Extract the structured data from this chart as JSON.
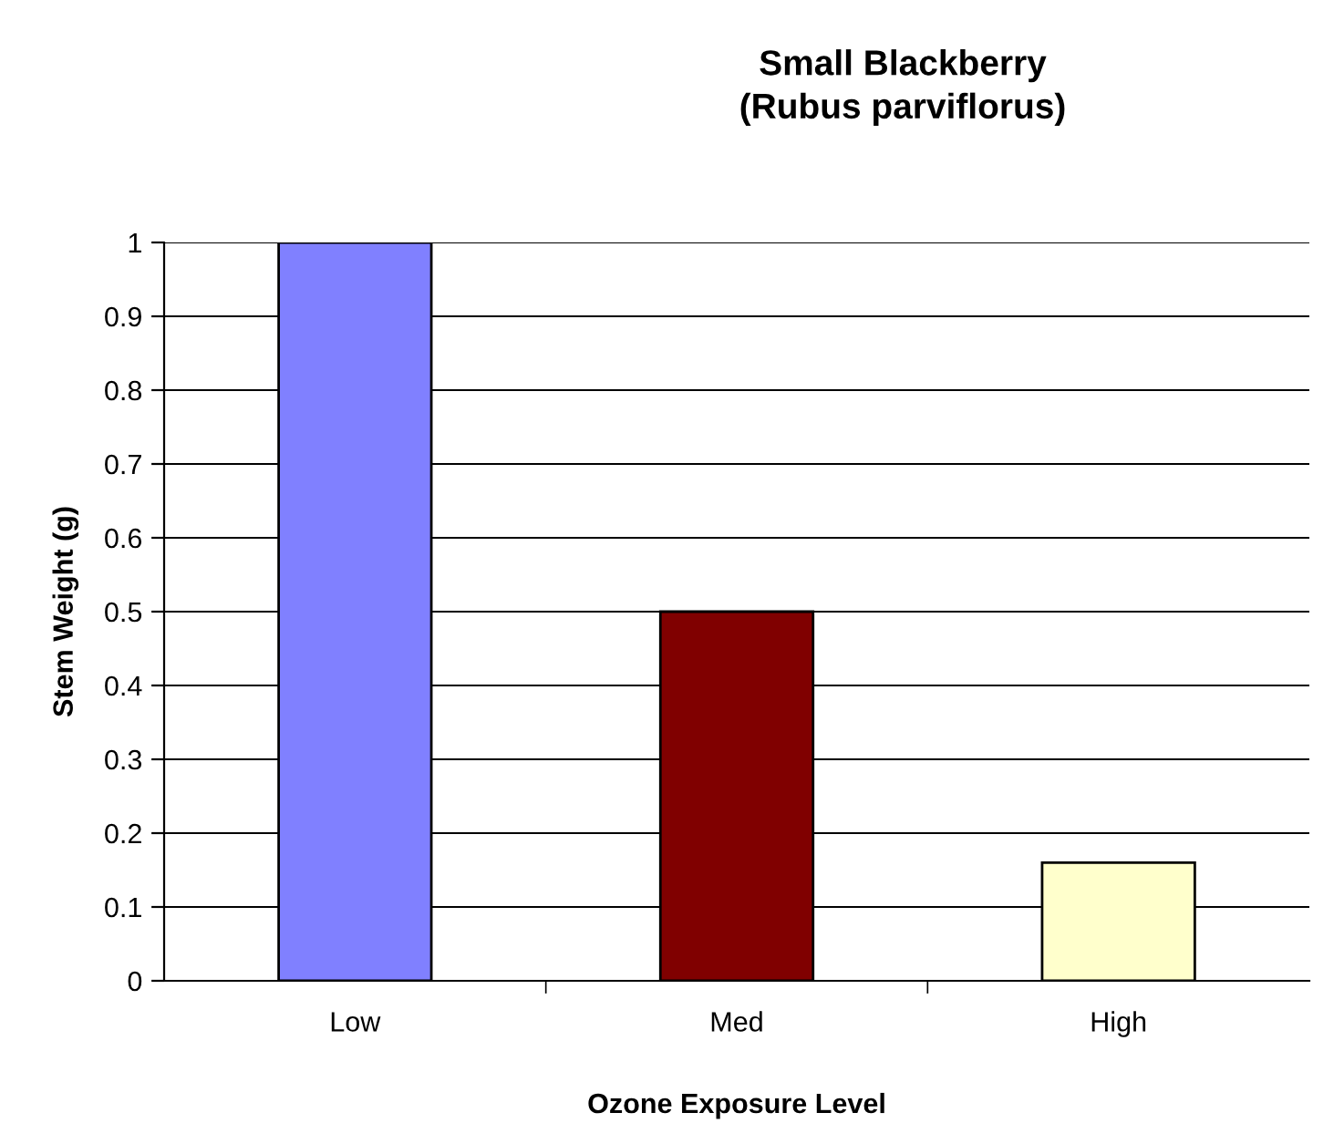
{
  "chart_data": {
    "type": "bar",
    "title": "Small Blackberry\n(Rubus parviflorus)",
    "xlabel": "Ozone Exposure Level",
    "ylabel": "Stem Weight (g)",
    "categories": [
      "Low",
      "Med",
      "High"
    ],
    "values": [
      1.0,
      0.5,
      0.16
    ],
    "colors": [
      "#8080ff",
      "#800000",
      "#ffffcc"
    ],
    "ylim": [
      0,
      1
    ],
    "yticks": [
      0,
      0.1,
      0.2,
      0.3,
      0.4,
      0.5,
      0.6,
      0.7,
      0.8,
      0.9,
      1
    ],
    "grid": "y",
    "legend": false
  }
}
